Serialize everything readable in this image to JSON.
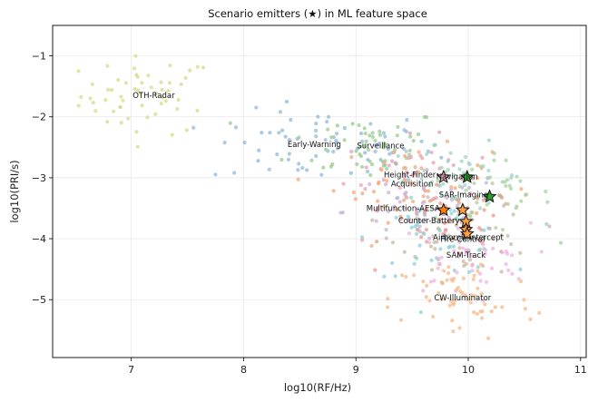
{
  "chart_data": {
    "type": "scatter",
    "title": "Scenario emitters (★) in ML feature space",
    "xlabel": "log10(RF/Hz)",
    "ylabel": "log10(PRI/s)",
    "xlim": [
      6.3,
      11.05
    ],
    "ylim": [
      -5.95,
      -0.5
    ],
    "xticks": [
      7,
      8,
      9,
      10,
      11
    ],
    "xtick_labels": [
      "7",
      "8",
      "9",
      "10",
      "11"
    ],
    "yticks": [
      -1,
      -2,
      -3,
      -4,
      -5
    ],
    "ytick_labels": [
      "−1",
      "−2",
      "−3",
      "−4",
      "−5"
    ],
    "grid": true,
    "legend": "none",
    "clusters": [
      {
        "label": "OTH-Radar",
        "color": "#d9d98a",
        "center": [
          7.15,
          -1.65
        ],
        "spread": [
          0.3,
          0.32
        ],
        "count": 55
      },
      {
        "label": "Early-Warning",
        "color": "#8fb8dc",
        "center": [
          8.7,
          -2.5
        ],
        "spread": [
          0.5,
          0.3
        ],
        "count": 70
      },
      {
        "label": "Surveillance",
        "color": "#96cc8c",
        "center": [
          9.1,
          -2.45
        ],
        "spread": [
          0.35,
          0.3
        ],
        "count": 55
      },
      {
        "label": "Height-Finder",
        "color": "#e3a2b1",
        "center": [
          9.5,
          -2.9
        ],
        "spread": [
          0.3,
          0.28
        ],
        "count": 40
      },
      {
        "label": "Acquisition",
        "color": "#f2a877",
        "center": [
          9.5,
          -3.1
        ],
        "spread": [
          0.35,
          0.3
        ],
        "count": 45
      },
      {
        "label": "Navigation",
        "color": "#9bd4c5",
        "center": [
          9.9,
          -3.0
        ],
        "spread": [
          0.3,
          0.28
        ],
        "count": 40
      },
      {
        "label": "SAR-Imaging",
        "color": "#a7d39c",
        "center": [
          10.15,
          -3.3
        ],
        "spread": [
          0.3,
          0.3
        ],
        "count": 50
      },
      {
        "label": "Multifunction-AESA",
        "color": "#c6b0d9",
        "center": [
          9.6,
          -3.55
        ],
        "spread": [
          0.35,
          0.3
        ],
        "count": 50
      },
      {
        "label": "Counter-Battery",
        "color": "#e89a8e",
        "center": [
          9.85,
          -3.75
        ],
        "spread": [
          0.3,
          0.3
        ],
        "count": 45
      },
      {
        "label": "Airborne-Intercept",
        "color": "#c9b7a0",
        "center": [
          10.0,
          -4.0
        ],
        "spread": [
          0.3,
          0.3
        ],
        "count": 45
      },
      {
        "label": "Fire-Control",
        "color": "#8ad0d8",
        "center": [
          9.75,
          -4.0
        ],
        "spread": [
          0.3,
          0.3
        ],
        "count": 45
      },
      {
        "label": "SAM-Track",
        "color": "#edb3dc",
        "center": [
          9.95,
          -4.35
        ],
        "spread": [
          0.3,
          0.3
        ],
        "count": 45
      },
      {
        "label": "CW-Illuminator",
        "color": "#f6b988",
        "center": [
          9.95,
          -5.0
        ],
        "spread": [
          0.32,
          0.35
        ],
        "count": 60
      }
    ],
    "label_positions": [
      {
        "text": "OTH-Radar",
        "x": 7.2,
        "y": -1.65
      },
      {
        "text": "Early-Warning",
        "x": 8.63,
        "y": -2.45
      },
      {
        "text": "Surveillance",
        "x": 9.22,
        "y": -2.47
      },
      {
        "text": "Height-Finder",
        "x": 9.48,
        "y": -2.95
      },
      {
        "text": "Navigation",
        "x": 9.9,
        "y": -2.98
      },
      {
        "text": "Acquisition",
        "x": 9.5,
        "y": -3.1
      },
      {
        "text": "SAR-Imaging",
        "x": 9.96,
        "y": -3.28
      },
      {
        "text": "Multifunction-AESA",
        "x": 9.42,
        "y": -3.5
      },
      {
        "text": "Counter-Battery",
        "x": 9.65,
        "y": -3.7
      },
      {
        "text": "Airborne-Intercept",
        "x": 10.0,
        "y": -3.98
      },
      {
        "text": "Fire-Control",
        "x": 9.95,
        "y": -4.01
      },
      {
        "text": "SAM-Track",
        "x": 9.98,
        "y": -4.27
      },
      {
        "text": "CW-Illuminator",
        "x": 9.95,
        "y": -4.97
      }
    ],
    "stars": [
      {
        "name": "Height-Finder",
        "x": 9.78,
        "y": -2.99,
        "color": "#e8a5b8"
      },
      {
        "name": "Navigation",
        "x": 9.99,
        "y": -2.99,
        "color": "#2ca02c"
      },
      {
        "name": "SAR-Imaging",
        "x": 10.19,
        "y": -3.31,
        "color": "#2ca02c"
      },
      {
        "name": "Multifunction-AESA",
        "x": 9.78,
        "y": -3.53,
        "color": "#ff7f0e"
      },
      {
        "name": "Acquisition",
        "x": 9.95,
        "y": -3.53,
        "color": "#ff9f3f"
      },
      {
        "name": "Counter-Battery",
        "x": 9.98,
        "y": -3.72,
        "color": "#ff9f3f"
      },
      {
        "name": "Fire-Control",
        "x": 9.98,
        "y": -3.85,
        "color": "#ff9f3f"
      },
      {
        "name": "Airborne-Intercept",
        "x": 9.99,
        "y": -3.92,
        "color": "#ff9f3f"
      }
    ]
  }
}
